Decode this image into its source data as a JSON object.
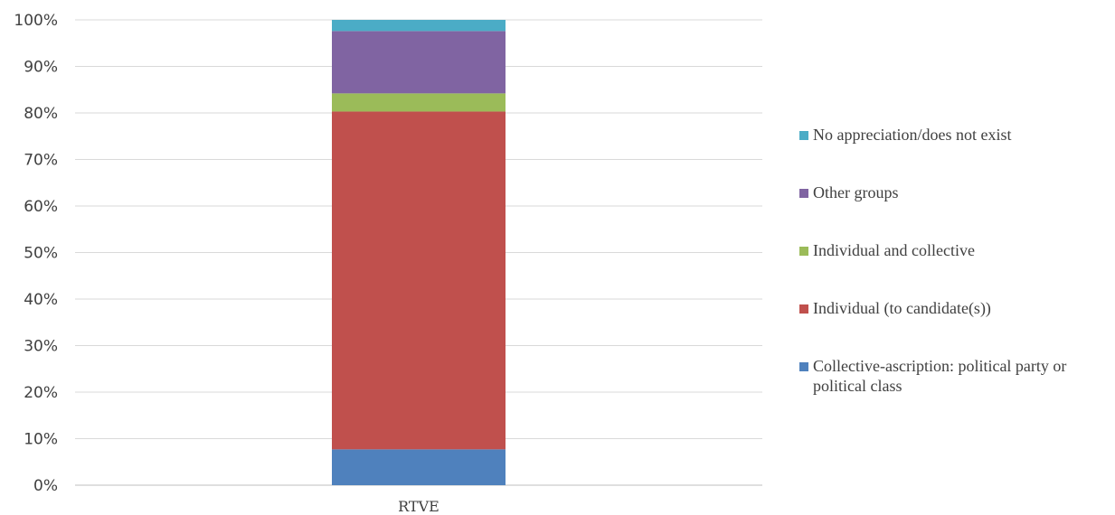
{
  "chart_data": {
    "type": "bar",
    "stacked": true,
    "percent_axis": true,
    "categories": [
      "RTVE"
    ],
    "series": [
      {
        "name": "Collective-ascription: political party or political class",
        "values": [
          7.7
        ],
        "color": "#4F81BD"
      },
      {
        "name": "Individual (to candidate(s))",
        "values": [
          72.6
        ],
        "color": "#C0504D"
      },
      {
        "name": "Individual and collective",
        "values": [
          3.9
        ],
        "color": "#9BBB59"
      },
      {
        "name": "Other groups",
        "values": [
          13.4
        ],
        "color": "#8064A2"
      },
      {
        "name": "No appreciation/does not exist",
        "values": [
          2.4
        ],
        "color": "#4BACC6"
      }
    ],
    "ylim": [
      0,
      100
    ],
    "yticks": [
      "0%",
      "10%",
      "20%",
      "30%",
      "40%",
      "50%",
      "60%",
      "70%",
      "80%",
      "90%",
      "100%"
    ],
    "grid": true,
    "legend_position": "right"
  }
}
